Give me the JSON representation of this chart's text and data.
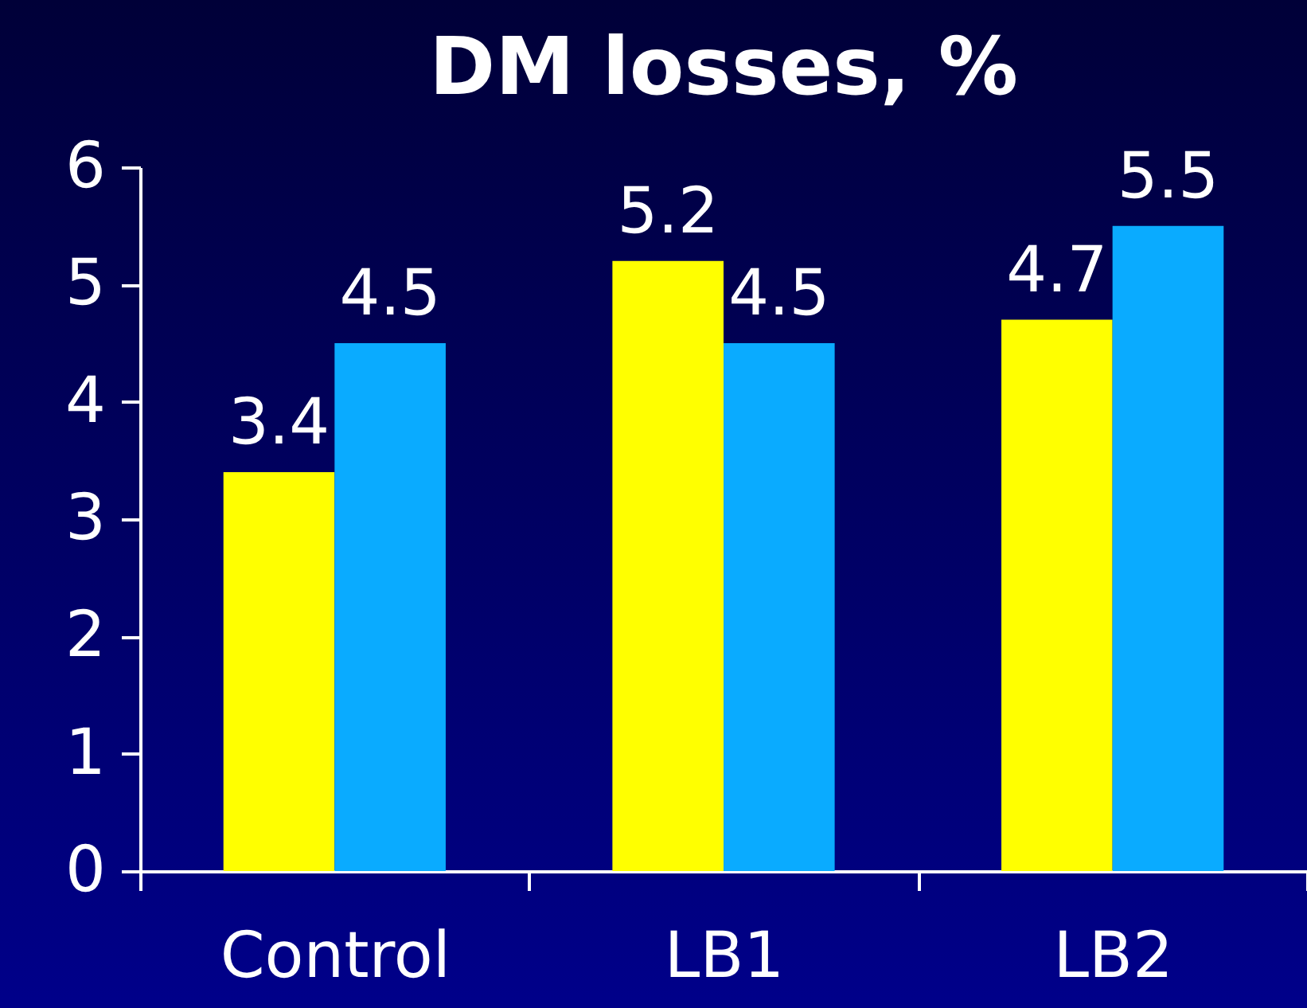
{
  "chart_data": {
    "type": "bar",
    "title": "DM losses, %",
    "categories": [
      "Control",
      "LB1",
      "LB2"
    ],
    "series": [
      {
        "color": "#ffff00",
        "values": [
          3.4,
          5.2,
          4.7
        ]
      },
      {
        "color": "#0aabff",
        "values": [
          4.5,
          4.5,
          5.5
        ]
      }
    ],
    "ylim": [
      0,
      6
    ],
    "yticks": [
      0,
      1,
      2,
      3,
      4,
      5,
      6
    ],
    "grid": false,
    "legend": false,
    "data_labels": true
  }
}
